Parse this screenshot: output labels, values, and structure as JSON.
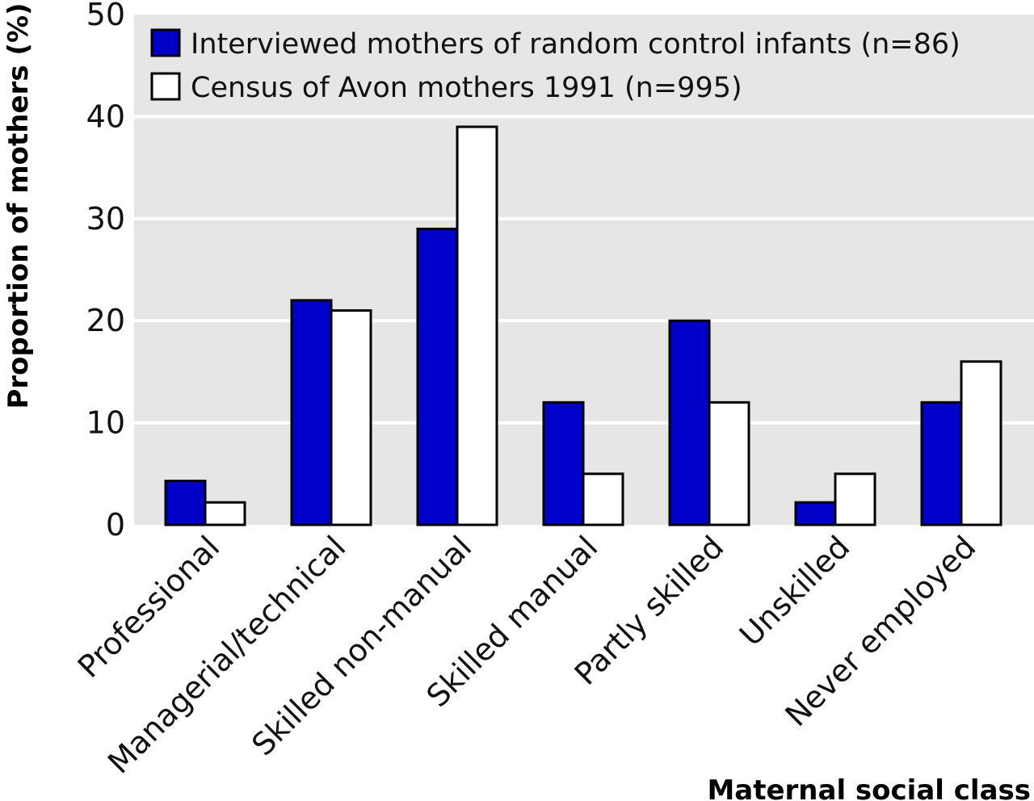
{
  "chart_data": {
    "type": "bar",
    "title": "",
    "xlabel": "Maternal social class",
    "ylabel": "Proportion of mothers (%)",
    "ylim": [
      0,
      50
    ],
    "yticks": [
      0,
      10,
      20,
      30,
      40,
      50
    ],
    "grid": true,
    "legend_position": "top-left",
    "categories": [
      "Professional",
      "Managerial/technical",
      "Skilled non-manual",
      "Skilled manual",
      "Partly skilled",
      "Unskilled",
      "Never employed"
    ],
    "series": [
      {
        "name": "Interviewed mothers of random control infants (n=86)",
        "color": "#0000c8",
        "values": [
          4.3,
          22,
          29,
          12,
          20,
          2.2,
          12
        ]
      },
      {
        "name": "Census of Avon mothers 1991 (n=995)",
        "color": "#ffffff",
        "values": [
          2.2,
          21,
          39,
          5,
          12,
          5,
          16
        ]
      }
    ],
    "plot_background": "#e6e6e6",
    "gridline_color": "#ffffff"
  }
}
